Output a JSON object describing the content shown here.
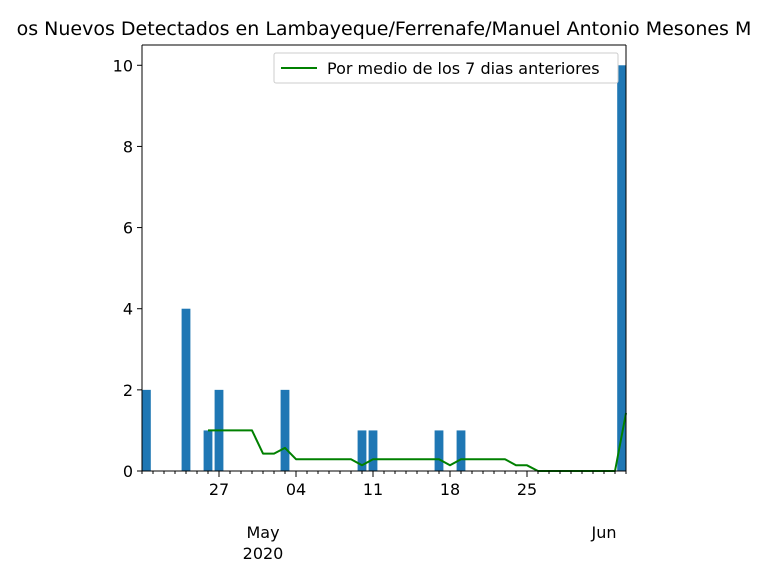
{
  "chart_data": {
    "type": "bar",
    "title": "os Nuevos Detectados en Lambayeque/Ferrenafe/Manuel Antonio Mesones M",
    "xlabel": "",
    "ylabel": "",
    "x_start": "2020-04-20",
    "x_end": "2020-06-03",
    "ylim": [
      0,
      10.5
    ],
    "yticks": [
      0,
      2,
      4,
      6,
      8,
      10
    ],
    "xticks_major": [
      {
        "date": "2020-04-27",
        "label": "27"
      },
      {
        "date": "2020-05-04",
        "label": "04"
      },
      {
        "date": "2020-05-11",
        "label": "11"
      },
      {
        "date": "2020-05-18",
        "label": "18"
      },
      {
        "date": "2020-05-25",
        "label": "25"
      }
    ],
    "month_labels": [
      {
        "date": "2020-05-01",
        "label": "May",
        "sublabel": "2020"
      },
      {
        "date": "2020-06-01",
        "label": "Jun",
        "sublabel": ""
      }
    ],
    "series": [
      {
        "type": "bar",
        "color": "#1f77b4",
        "points": [
          {
            "x": "2020-04-20",
            "y": 2
          },
          {
            "x": "2020-04-24",
            "y": 4
          },
          {
            "x": "2020-04-26",
            "y": 1
          },
          {
            "x": "2020-04-27",
            "y": 2
          },
          {
            "x": "2020-05-03",
            "y": 2
          },
          {
            "x": "2020-05-10",
            "y": 1
          },
          {
            "x": "2020-05-11",
            "y": 1
          },
          {
            "x": "2020-05-17",
            "y": 1
          },
          {
            "x": "2020-05-19",
            "y": 1
          },
          {
            "x": "2020-06-03",
            "y": 10
          }
        ]
      },
      {
        "type": "line",
        "name": "Por medio de los 7 dias anteriores",
        "color": "#008000",
        "points": [
          {
            "x": "2020-04-26",
            "y": 1.0
          },
          {
            "x": "2020-04-27",
            "y": 1.0
          },
          {
            "x": "2020-04-28",
            "y": 1.0
          },
          {
            "x": "2020-04-29",
            "y": 1.0
          },
          {
            "x": "2020-04-30",
            "y": 1.0
          },
          {
            "x": "2020-05-01",
            "y": 0.43
          },
          {
            "x": "2020-05-02",
            "y": 0.43
          },
          {
            "x": "2020-05-03",
            "y": 0.57
          },
          {
            "x": "2020-05-04",
            "y": 0.29
          },
          {
            "x": "2020-05-05",
            "y": 0.29
          },
          {
            "x": "2020-05-06",
            "y": 0.29
          },
          {
            "x": "2020-05-07",
            "y": 0.29
          },
          {
            "x": "2020-05-08",
            "y": 0.29
          },
          {
            "x": "2020-05-09",
            "y": 0.29
          },
          {
            "x": "2020-05-10",
            "y": 0.14
          },
          {
            "x": "2020-05-11",
            "y": 0.29
          },
          {
            "x": "2020-05-12",
            "y": 0.29
          },
          {
            "x": "2020-05-13",
            "y": 0.29
          },
          {
            "x": "2020-05-14",
            "y": 0.29
          },
          {
            "x": "2020-05-15",
            "y": 0.29
          },
          {
            "x": "2020-05-16",
            "y": 0.29
          },
          {
            "x": "2020-05-17",
            "y": 0.29
          },
          {
            "x": "2020-05-18",
            "y": 0.14
          },
          {
            "x": "2020-05-19",
            "y": 0.29
          },
          {
            "x": "2020-05-20",
            "y": 0.29
          },
          {
            "x": "2020-05-21",
            "y": 0.29
          },
          {
            "x": "2020-05-22",
            "y": 0.29
          },
          {
            "x": "2020-05-23",
            "y": 0.29
          },
          {
            "x": "2020-05-24",
            "y": 0.14
          },
          {
            "x": "2020-05-25",
            "y": 0.14
          },
          {
            "x": "2020-05-26",
            "y": 0.0
          },
          {
            "x": "2020-05-27",
            "y": 0.0
          },
          {
            "x": "2020-05-28",
            "y": 0.0
          },
          {
            "x": "2020-05-29",
            "y": 0.0
          },
          {
            "x": "2020-05-30",
            "y": 0.0
          },
          {
            "x": "2020-05-31",
            "y": 0.0
          },
          {
            "x": "2020-06-01",
            "y": 0.0
          },
          {
            "x": "2020-06-02",
            "y": 0.0
          },
          {
            "x": "2020-06-03",
            "y": 1.43
          }
        ]
      }
    ],
    "legend": {
      "position": "upper right"
    },
    "grid": false
  }
}
